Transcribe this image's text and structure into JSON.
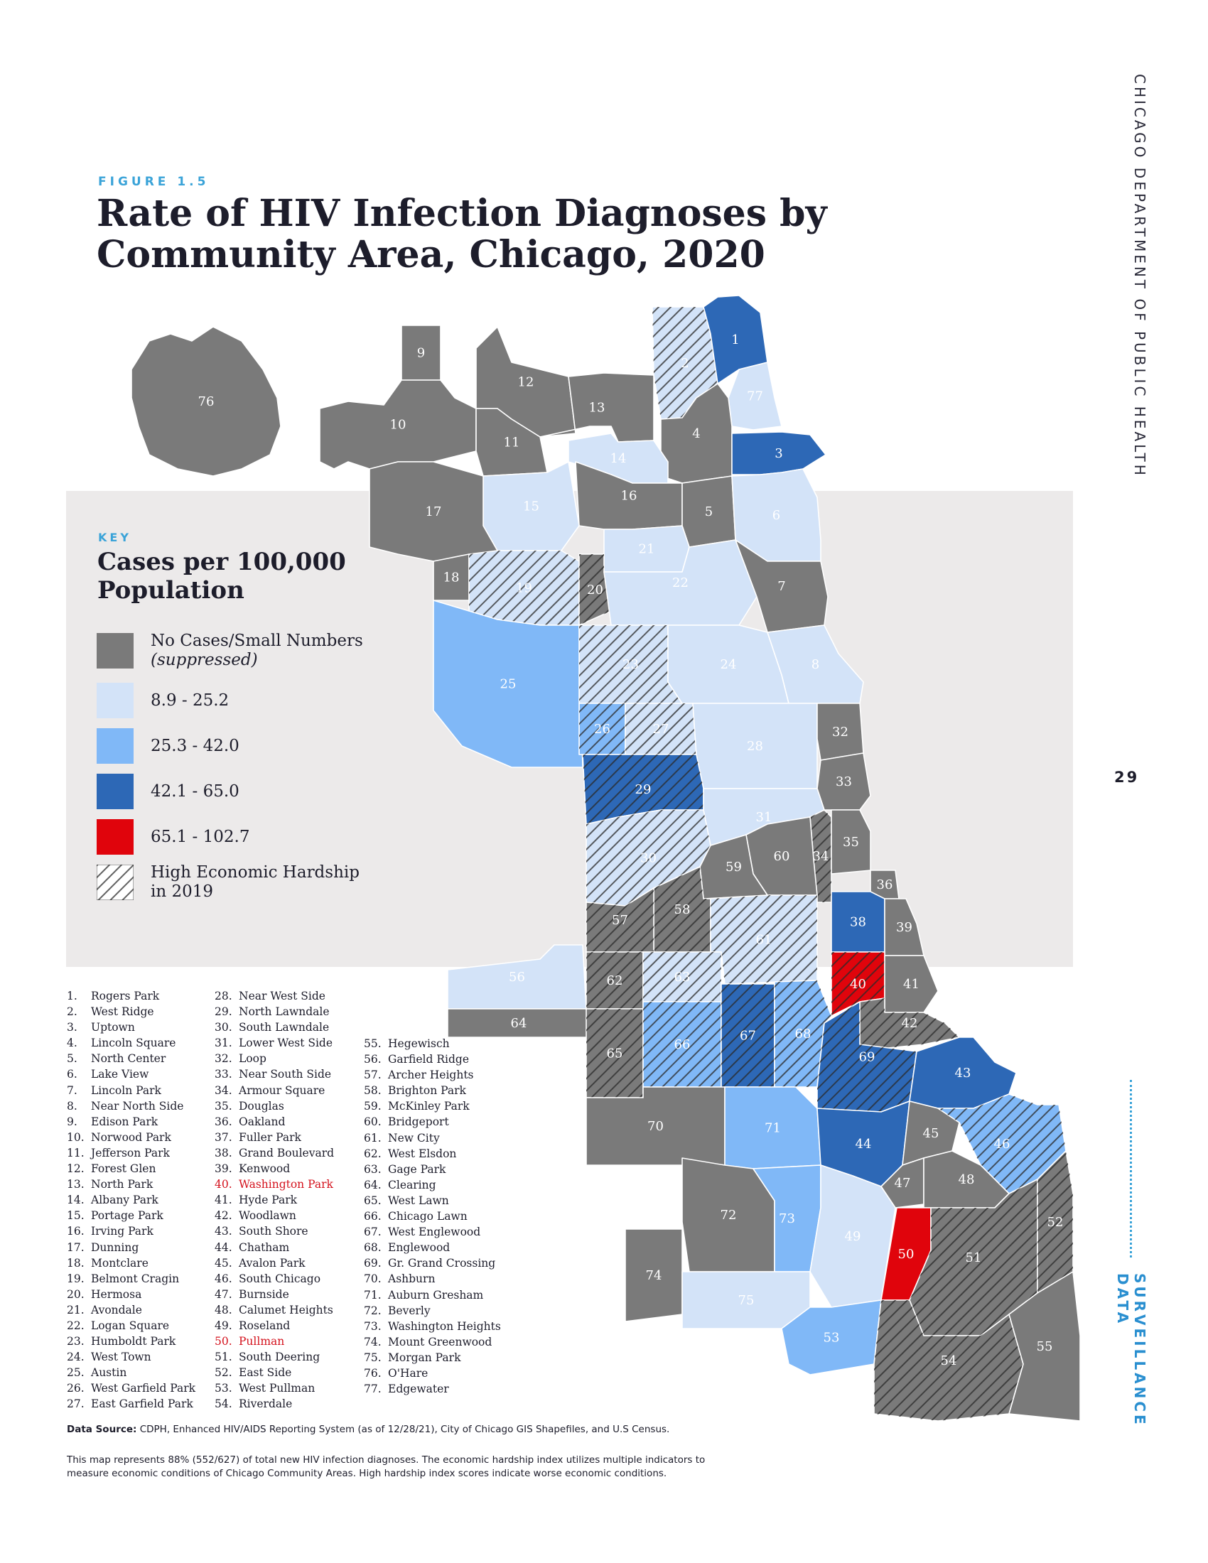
{
  "figure_label": "FIGURE 1.5",
  "title": "Rate of HIV Infection Diagnoses by Community Area, Chicago, 2020",
  "side_header": "CHICAGO DEPARTMENT OF PUBLIC HEALTH",
  "side_section": "SURVEILLANCE DATA",
  "page_number": "29",
  "key": {
    "label": "KEY",
    "title": "Cases per 100,000 Population",
    "items": [
      {
        "label": "No Cases/Small Numbers",
        "sublabel": "(suppressed)",
        "color": "#7a7a7a"
      },
      {
        "label": "8.9 - 25.2",
        "sublabel": "",
        "color": "#d3e3f8"
      },
      {
        "label": "25.3 - 42.0",
        "sublabel": "",
        "color": "#80b8f7"
      },
      {
        "label": "42.1 - 65.0",
        "sublabel": "",
        "color": "#2d68b6"
      },
      {
        "label": "65.1 - 102.7",
        "sublabel": "",
        "color": "#e0040c"
      },
      {
        "label": "High Economic Hardship",
        "sublabel": "in 2019",
        "color": "hatch"
      }
    ]
  },
  "colors": {
    "suppressed": "#7a7a7a",
    "light": "#d3e3f8",
    "medium": "#80b8f7",
    "dark": "#2d68b6",
    "red": "#e0040c",
    "highlight_text": "#d4111c",
    "accent": "#3aa3d8"
  },
  "map_areas": [
    {
      "num": "1",
      "cls": "dark",
      "hatch": false
    },
    {
      "num": "2",
      "cls": "light",
      "hatch": true
    },
    {
      "num": "3",
      "cls": "dark",
      "hatch": false
    },
    {
      "num": "4",
      "cls": "gray",
      "hatch": false
    },
    {
      "num": "5",
      "cls": "gray",
      "hatch": false
    },
    {
      "num": "6",
      "cls": "light",
      "hatch": false
    },
    {
      "num": "7",
      "cls": "gray",
      "hatch": false
    },
    {
      "num": "8",
      "cls": "light",
      "hatch": false
    },
    {
      "num": "9",
      "cls": "gray",
      "hatch": false
    },
    {
      "num": "10",
      "cls": "gray",
      "hatch": false
    },
    {
      "num": "11",
      "cls": "gray",
      "hatch": false
    },
    {
      "num": "12",
      "cls": "gray",
      "hatch": false
    },
    {
      "num": "13",
      "cls": "gray",
      "hatch": false
    },
    {
      "num": "14",
      "cls": "light",
      "hatch": false
    },
    {
      "num": "15",
      "cls": "light",
      "hatch": false
    },
    {
      "num": "16",
      "cls": "gray",
      "hatch": false
    },
    {
      "num": "17",
      "cls": "gray",
      "hatch": false
    },
    {
      "num": "18",
      "cls": "gray",
      "hatch": false
    },
    {
      "num": "19",
      "cls": "light",
      "hatch": true
    },
    {
      "num": "20",
      "cls": "gray",
      "hatch": true
    },
    {
      "num": "21",
      "cls": "light",
      "hatch": false
    },
    {
      "num": "22",
      "cls": "light",
      "hatch": false
    },
    {
      "num": "23",
      "cls": "light",
      "hatch": true
    },
    {
      "num": "24",
      "cls": "light",
      "hatch": false
    },
    {
      "num": "25",
      "cls": "medium",
      "hatch": false
    },
    {
      "num": "26",
      "cls": "medium",
      "hatch": true
    },
    {
      "num": "27",
      "cls": "light",
      "hatch": true
    },
    {
      "num": "28",
      "cls": "light",
      "hatch": false
    },
    {
      "num": "29",
      "cls": "dark",
      "hatch": true
    },
    {
      "num": "30",
      "cls": "light",
      "hatch": true
    },
    {
      "num": "31",
      "cls": "light",
      "hatch": false
    },
    {
      "num": "32",
      "cls": "gray",
      "hatch": false
    },
    {
      "num": "33",
      "cls": "gray",
      "hatch": false
    },
    {
      "num": "34",
      "cls": "gray",
      "hatch": true
    },
    {
      "num": "35",
      "cls": "gray",
      "hatch": false
    },
    {
      "num": "36",
      "cls": "gray",
      "hatch": false
    },
    {
      "num": "38",
      "cls": "dark",
      "hatch": false
    },
    {
      "num": "39",
      "cls": "gray",
      "hatch": false
    },
    {
      "num": "40",
      "cls": "red",
      "hatch": true
    },
    {
      "num": "41",
      "cls": "gray",
      "hatch": false
    },
    {
      "num": "42",
      "cls": "gray",
      "hatch": true
    },
    {
      "num": "43",
      "cls": "dark",
      "hatch": false
    },
    {
      "num": "44",
      "cls": "dark",
      "hatch": false
    },
    {
      "num": "45",
      "cls": "gray",
      "hatch": false
    },
    {
      "num": "46",
      "cls": "medium",
      "hatch": true
    },
    {
      "num": "47",
      "cls": "gray",
      "hatch": false
    },
    {
      "num": "48",
      "cls": "gray",
      "hatch": false
    },
    {
      "num": "49",
      "cls": "light",
      "hatch": false
    },
    {
      "num": "50",
      "cls": "red",
      "hatch": false
    },
    {
      "num": "51",
      "cls": "gray",
      "hatch": true
    },
    {
      "num": "52",
      "cls": "gray",
      "hatch": true
    },
    {
      "num": "53",
      "cls": "medium",
      "hatch": false
    },
    {
      "num": "54",
      "cls": "gray",
      "hatch": true
    },
    {
      "num": "55",
      "cls": "gray",
      "hatch": false
    },
    {
      "num": "56",
      "cls": "light",
      "hatch": false
    },
    {
      "num": "57",
      "cls": "gray",
      "hatch": true
    },
    {
      "num": "58",
      "cls": "gray",
      "hatch": true
    },
    {
      "num": "59",
      "cls": "gray",
      "hatch": false
    },
    {
      "num": "60",
      "cls": "gray",
      "hatch": false
    },
    {
      "num": "61",
      "cls": "light",
      "hatch": true
    },
    {
      "num": "62",
      "cls": "gray",
      "hatch": true
    },
    {
      "num": "63",
      "cls": "light",
      "hatch": true
    },
    {
      "num": "64",
      "cls": "gray",
      "hatch": false
    },
    {
      "num": "65",
      "cls": "gray",
      "hatch": true
    },
    {
      "num": "66",
      "cls": "medium",
      "hatch": true
    },
    {
      "num": "67",
      "cls": "dark",
      "hatch": true
    },
    {
      "num": "68",
      "cls": "medium",
      "hatch": true
    },
    {
      "num": "69",
      "cls": "dark",
      "hatch": true
    },
    {
      "num": "70",
      "cls": "gray",
      "hatch": false
    },
    {
      "num": "71",
      "cls": "medium",
      "hatch": false
    },
    {
      "num": "72",
      "cls": "gray",
      "hatch": false
    },
    {
      "num": "73",
      "cls": "medium",
      "hatch": false
    },
    {
      "num": "74",
      "cls": "gray",
      "hatch": false
    },
    {
      "num": "75",
      "cls": "light",
      "hatch": false
    },
    {
      "num": "76",
      "cls": "gray",
      "hatch": false
    },
    {
      "num": "77",
      "cls": "light",
      "hatch": false
    }
  ],
  "area_list": {
    "col1": [
      {
        "num": "1.",
        "name": "Rogers Park"
      },
      {
        "num": "2.",
        "name": "West Ridge"
      },
      {
        "num": "3.",
        "name": "Uptown"
      },
      {
        "num": "4.",
        "name": "Lincoln Square"
      },
      {
        "num": "5.",
        "name": "North Center"
      },
      {
        "num": "6.",
        "name": "Lake View"
      },
      {
        "num": "7.",
        "name": "Lincoln Park"
      },
      {
        "num": "8.",
        "name": "Near North Side"
      },
      {
        "num": "9.",
        "name": "Edison Park"
      },
      {
        "num": "10.",
        "name": "Norwood Park"
      },
      {
        "num": "11.",
        "name": "Jefferson Park"
      },
      {
        "num": "12.",
        "name": "Forest Glen"
      },
      {
        "num": "13.",
        "name": "North Park"
      },
      {
        "num": "14.",
        "name": "Albany Park"
      },
      {
        "num": "15.",
        "name": "Portage Park"
      },
      {
        "num": "16.",
        "name": "Irving Park"
      },
      {
        "num": "17.",
        "name": "Dunning"
      },
      {
        "num": "18.",
        "name": "Montclare"
      },
      {
        "num": "19.",
        "name": "Belmont Cragin"
      },
      {
        "num": "20.",
        "name": "Hermosa"
      },
      {
        "num": "21.",
        "name": "Avondale"
      },
      {
        "num": "22.",
        "name": "Logan Square"
      },
      {
        "num": "23.",
        "name": "Humboldt Park"
      },
      {
        "num": "24.",
        "name": "West Town"
      },
      {
        "num": "25.",
        "name": "Austin"
      },
      {
        "num": "26.",
        "name": "West Garfield Park"
      },
      {
        "num": "27.",
        "name": "East Garfield Park"
      }
    ],
    "col2": [
      {
        "num": "28.",
        "name": "Near West Side"
      },
      {
        "num": "29.",
        "name": "North Lawndale"
      },
      {
        "num": "30.",
        "name": "South Lawndale"
      },
      {
        "num": "31.",
        "name": "Lower West Side"
      },
      {
        "num": "32.",
        "name": "Loop"
      },
      {
        "num": "33.",
        "name": "Near South Side"
      },
      {
        "num": "34.",
        "name": "Armour Square"
      },
      {
        "num": "35.",
        "name": "Douglas"
      },
      {
        "num": "36.",
        "name": "Oakland"
      },
      {
        "num": "37.",
        "name": "Fuller Park"
      },
      {
        "num": "38.",
        "name": "Grand Boulevard"
      },
      {
        "num": "39.",
        "name": "Kenwood"
      },
      {
        "num": "40.",
        "name": "Washington Park",
        "hl": true
      },
      {
        "num": "41.",
        "name": "Hyde Park"
      },
      {
        "num": "42.",
        "name": "Woodlawn"
      },
      {
        "num": "43.",
        "name": "South Shore"
      },
      {
        "num": "44.",
        "name": "Chatham"
      },
      {
        "num": "45.",
        "name": "Avalon Park"
      },
      {
        "num": "46.",
        "name": "South Chicago"
      },
      {
        "num": "47.",
        "name": "Burnside"
      },
      {
        "num": "48.",
        "name": "Calumet Heights"
      },
      {
        "num": "49.",
        "name": "Roseland"
      },
      {
        "num": "50.",
        "name": "Pullman",
        "hl": true
      },
      {
        "num": "51.",
        "name": "South Deering"
      },
      {
        "num": "52.",
        "name": "East Side"
      },
      {
        "num": "53.",
        "name": "West Pullman"
      },
      {
        "num": "54.",
        "name": "Riverdale"
      }
    ],
    "col3": [
      {
        "num": "55.",
        "name": "Hegewisch"
      },
      {
        "num": "56.",
        "name": "Garfield Ridge"
      },
      {
        "num": "57.",
        "name": "Archer Heights"
      },
      {
        "num": "58.",
        "name": "Brighton Park"
      },
      {
        "num": "59.",
        "name": "McKinley Park"
      },
      {
        "num": "60.",
        "name": "Bridgeport"
      },
      {
        "num": "61.",
        "name": "New City"
      },
      {
        "num": "62.",
        "name": "West Elsdon"
      },
      {
        "num": "63.",
        "name": "Gage Park"
      },
      {
        "num": "64.",
        "name": "Clearing"
      },
      {
        "num": "65.",
        "name": "West Lawn"
      },
      {
        "num": "66.",
        "name": "Chicago Lawn"
      },
      {
        "num": "67.",
        "name": "West Englewood"
      },
      {
        "num": "68.",
        "name": "Englewood"
      },
      {
        "num": "69.",
        "name": "Gr. Grand Crossing"
      },
      {
        "num": "70.",
        "name": "Ashburn"
      },
      {
        "num": "71.",
        "name": "Auburn Gresham"
      },
      {
        "num": "72.",
        "name": "Beverly"
      },
      {
        "num": "73.",
        "name": "Washington Heights"
      },
      {
        "num": "74.",
        "name": "Mount Greenwood"
      },
      {
        "num": "75.",
        "name": "Morgan Park"
      },
      {
        "num": "76.",
        "name": "O'Hare"
      },
      {
        "num": "77.",
        "name": "Edgewater"
      }
    ]
  },
  "source_label": "Data Source:",
  "source_text": "CDPH, Enhanced HIV/AIDS Reporting System (as of 12/28/21), City of Chicago GIS Shapefiles, and U.S Census.",
  "note": "This map represents 88% (552/627) of total new HIV infection diagnoses. The economic hardship index utilizes multiple indicators to measure economic conditions of Chicago Community Areas. High hardship index scores indicate worse economic conditions."
}
